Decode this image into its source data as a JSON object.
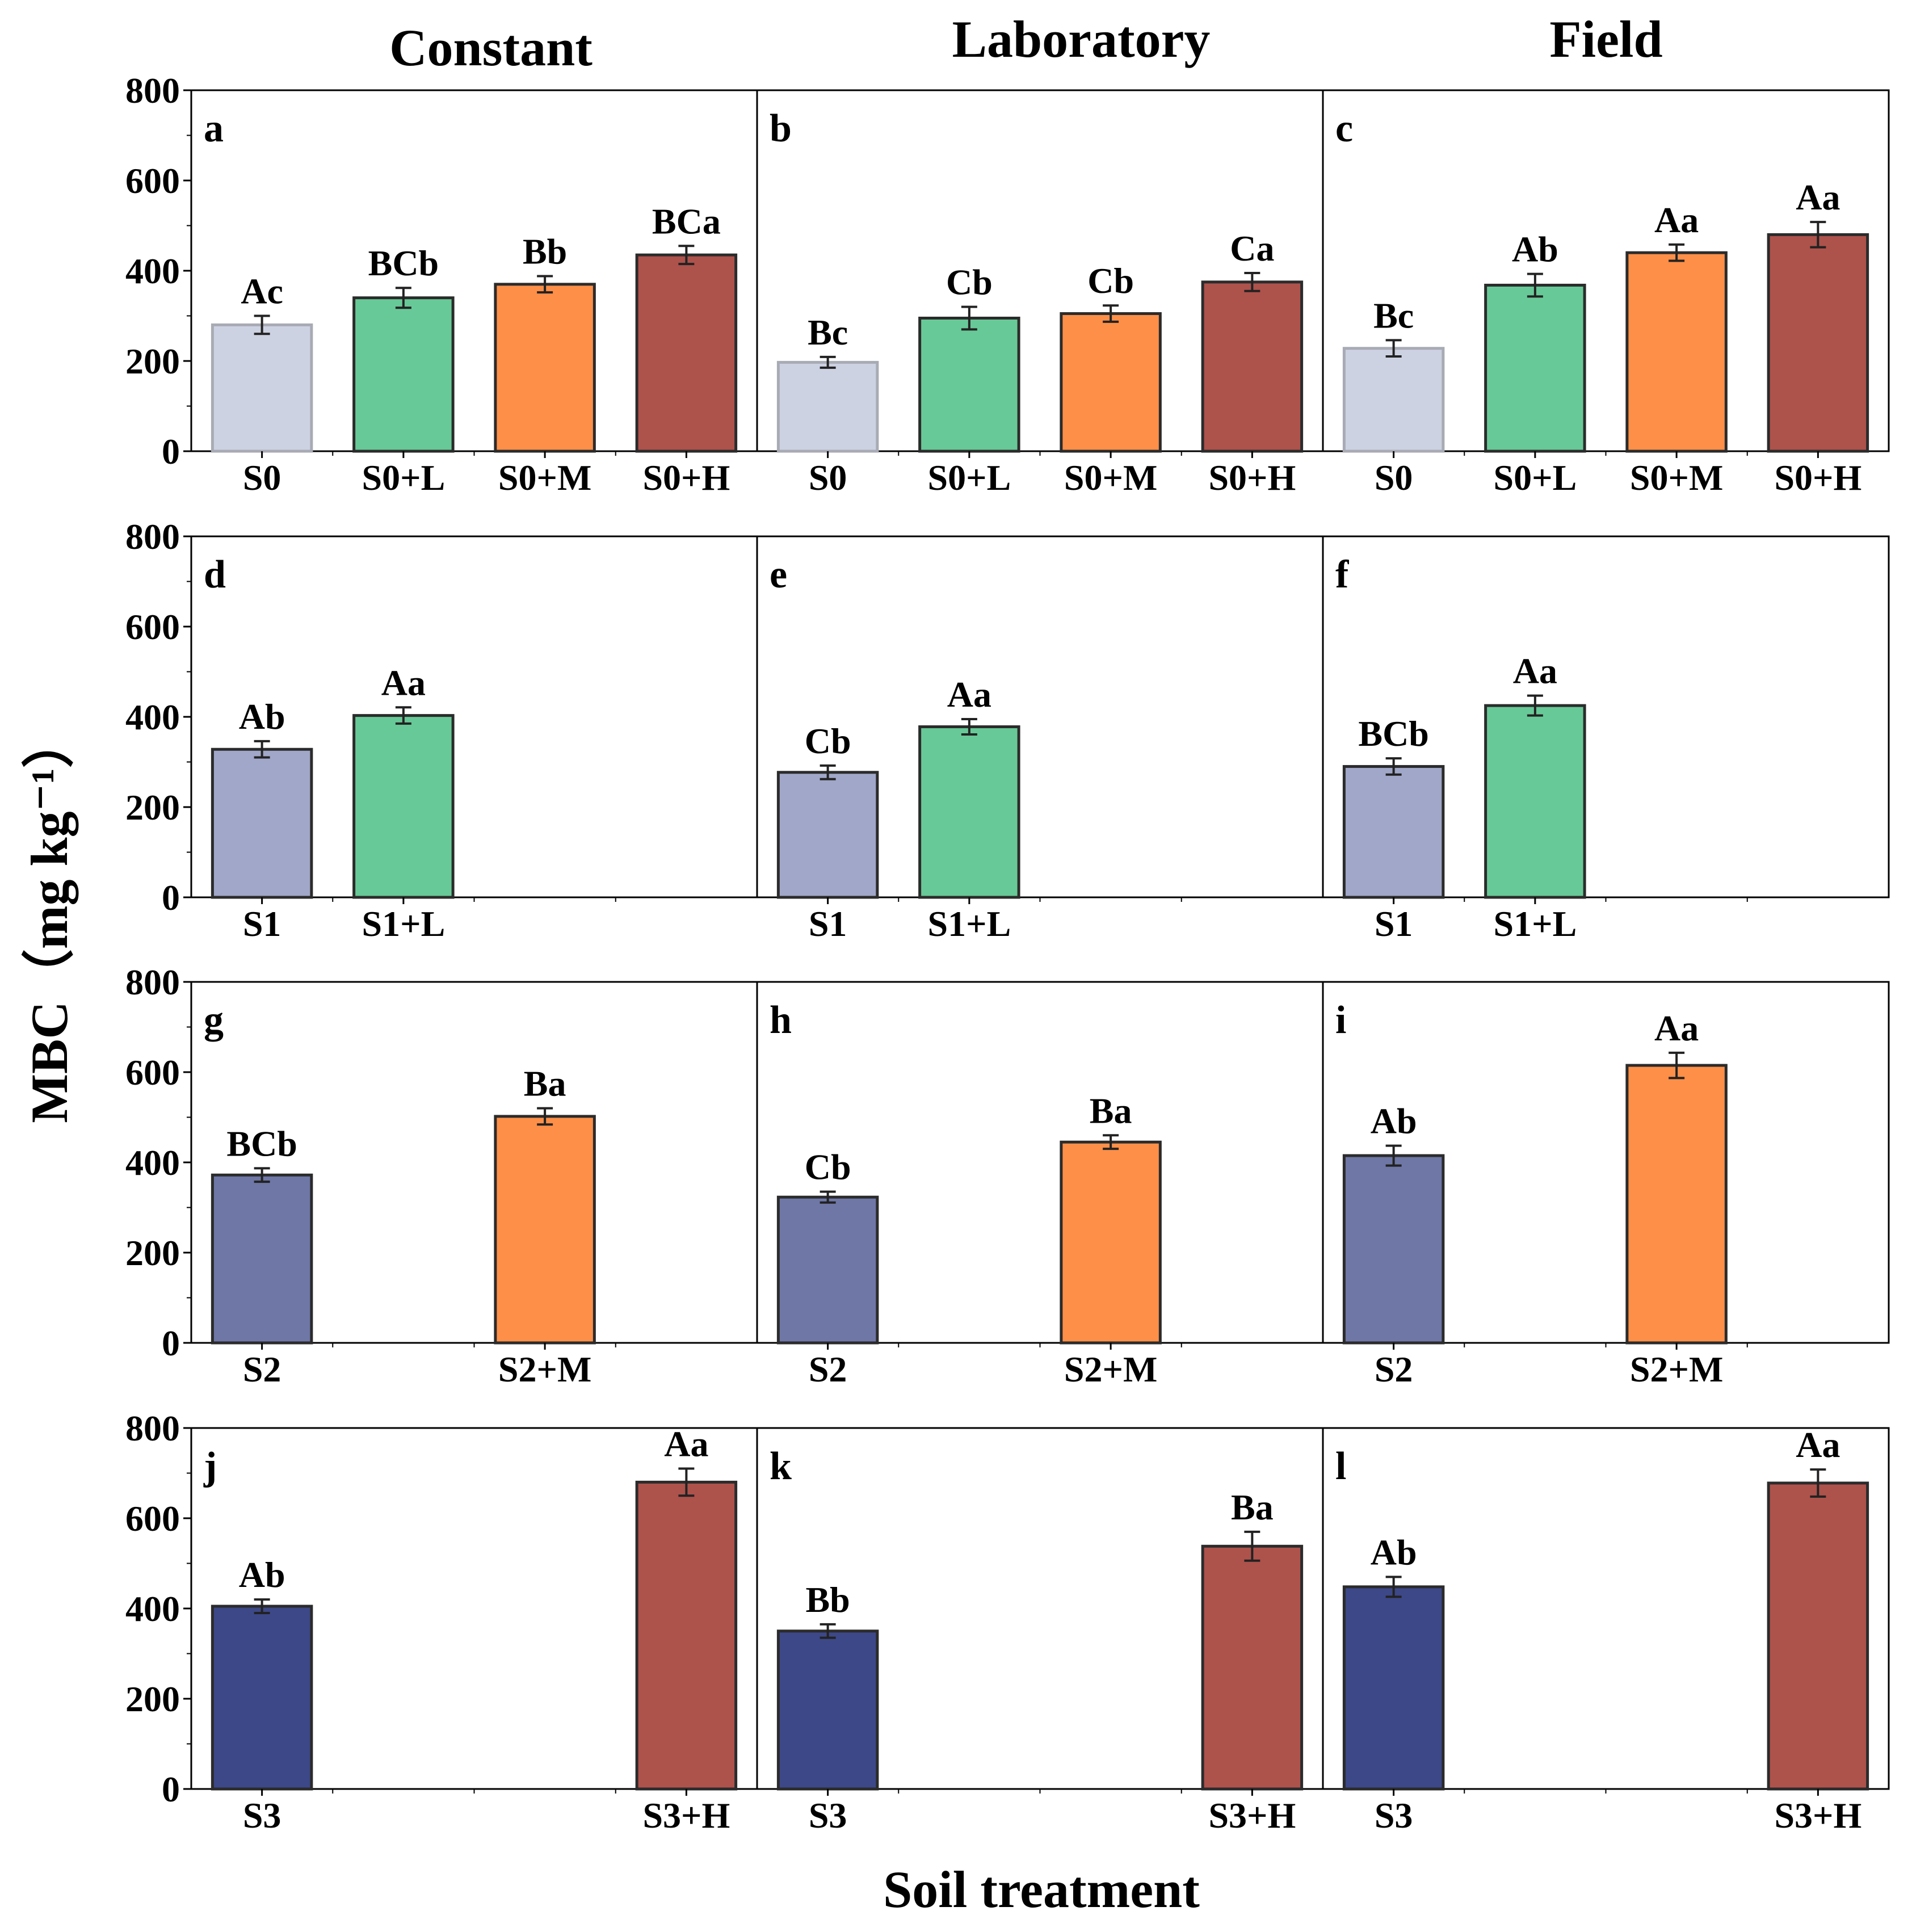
{
  "chart_data": {
    "type": "bar",
    "xlabel": "Soil treatment",
    "ylabel": "MBC（mg kg⁻¹）",
    "ylim": [
      0,
      800
    ],
    "yticks": [
      "0",
      "200",
      "400",
      "600",
      "800"
    ],
    "column_titles": [
      "Constant",
      "Laboratory",
      "Field"
    ],
    "colors": {
      "S0": "#cdd2e3",
      "S1": "#a0a7c8",
      "S2": "#6e77a6",
      "S3": "#3d4888",
      "L": "#67c997",
      "M": "#fd8f48",
      "H": "#ae524c"
    },
    "panels": [
      {
        "letter": "a",
        "row": 0,
        "col": 0,
        "slots": 4,
        "bars": [
          {
            "label": "S0",
            "slot": 0,
            "value": 280,
            "error": 20,
            "sig": "Ac",
            "color": "S0"
          },
          {
            "label": "S0+L",
            "slot": 1,
            "value": 340,
            "error": 22,
            "sig": "BCb",
            "color": "L"
          },
          {
            "label": "S0+M",
            "slot": 2,
            "value": 370,
            "error": 18,
            "sig": "Bb",
            "color": "M"
          },
          {
            "label": "S0+H",
            "slot": 3,
            "value": 435,
            "error": 20,
            "sig": "BCa",
            "color": "H"
          }
        ]
      },
      {
        "letter": "b",
        "row": 0,
        "col": 1,
        "slots": 4,
        "bars": [
          {
            "label": "S0",
            "slot": 0,
            "value": 197,
            "error": 12,
            "sig": "Bc",
            "color": "S0"
          },
          {
            "label": "S0+L",
            "slot": 1,
            "value": 295,
            "error": 25,
            "sig": "Cb",
            "color": "L"
          },
          {
            "label": "S0+M",
            "slot": 2,
            "value": 305,
            "error": 18,
            "sig": "Cb",
            "color": "M"
          },
          {
            "label": "S0+H",
            "slot": 3,
            "value": 375,
            "error": 20,
            "sig": "Ca",
            "color": "H"
          }
        ]
      },
      {
        "letter": "c",
        "row": 0,
        "col": 2,
        "slots": 4,
        "bars": [
          {
            "label": "S0",
            "slot": 0,
            "value": 228,
            "error": 18,
            "sig": "Bc",
            "color": "S0"
          },
          {
            "label": "S0+L",
            "slot": 1,
            "value": 368,
            "error": 25,
            "sig": "Ab",
            "color": "L"
          },
          {
            "label": "S0+M",
            "slot": 2,
            "value": 440,
            "error": 18,
            "sig": "Aa",
            "color": "M"
          },
          {
            "label": "S0+H",
            "slot": 3,
            "value": 480,
            "error": 28,
            "sig": "Aa",
            "color": "H"
          }
        ]
      },
      {
        "letter": "d",
        "row": 1,
        "col": 0,
        "slots": 4,
        "bars": [
          {
            "label": "S1",
            "slot": 0,
            "value": 328,
            "error": 18,
            "sig": "Ab",
            "color": "S1"
          },
          {
            "label": "S1+L",
            "slot": 1,
            "value": 403,
            "error": 18,
            "sig": "Aa",
            "color": "L"
          }
        ]
      },
      {
        "letter": "e",
        "row": 1,
        "col": 1,
        "slots": 4,
        "bars": [
          {
            "label": "S1",
            "slot": 0,
            "value": 277,
            "error": 15,
            "sig": "Cb",
            "color": "S1"
          },
          {
            "label": "S1+L",
            "slot": 1,
            "value": 378,
            "error": 17,
            "sig": "Aa",
            "color": "L"
          }
        ]
      },
      {
        "letter": "f",
        "row": 1,
        "col": 2,
        "slots": 4,
        "bars": [
          {
            "label": "S1",
            "slot": 0,
            "value": 290,
            "error": 18,
            "sig": "BCb",
            "color": "S1"
          },
          {
            "label": "S1+L",
            "slot": 1,
            "value": 425,
            "error": 22,
            "sig": "Aa",
            "color": "L"
          }
        ]
      },
      {
        "letter": "g",
        "row": 2,
        "col": 0,
        "slots": 4,
        "bars": [
          {
            "label": "S2",
            "slot": 0,
            "value": 372,
            "error": 15,
            "sig": "BCb",
            "color": "S2"
          },
          {
            "label": "S2+M",
            "slot": 2,
            "value": 502,
            "error": 18,
            "sig": "Ba",
            "color": "M"
          }
        ]
      },
      {
        "letter": "h",
        "row": 2,
        "col": 1,
        "slots": 4,
        "bars": [
          {
            "label": "S2",
            "slot": 0,
            "value": 323,
            "error": 12,
            "sig": "Cb",
            "color": "S2"
          },
          {
            "label": "S2+M",
            "slot": 2,
            "value": 445,
            "error": 15,
            "sig": "Ba",
            "color": "M"
          }
        ]
      },
      {
        "letter": "i",
        "row": 2,
        "col": 2,
        "slots": 4,
        "bars": [
          {
            "label": "S2",
            "slot": 0,
            "value": 415,
            "error": 22,
            "sig": "Ab",
            "color": "S2"
          },
          {
            "label": "S2+M",
            "slot": 2,
            "value": 615,
            "error": 28,
            "sig": "Aa",
            "color": "M"
          }
        ]
      },
      {
        "letter": "j",
        "row": 3,
        "col": 0,
        "slots": 4,
        "bars": [
          {
            "label": "S3",
            "slot": 0,
            "value": 405,
            "error": 15,
            "sig": "Ab",
            "color": "S3"
          },
          {
            "label": "S3+H",
            "slot": 3,
            "value": 680,
            "error": 30,
            "sig": "Aa",
            "color": "H"
          }
        ]
      },
      {
        "letter": "k",
        "row": 3,
        "col": 1,
        "slots": 4,
        "bars": [
          {
            "label": "S3",
            "slot": 0,
            "value": 350,
            "error": 15,
            "sig": "Bb",
            "color": "S3"
          },
          {
            "label": "S3+H",
            "slot": 3,
            "value": 538,
            "error": 32,
            "sig": "Ba",
            "color": "H"
          }
        ]
      },
      {
        "letter": "l",
        "row": 3,
        "col": 2,
        "slots": 4,
        "bars": [
          {
            "label": "S3",
            "slot": 0,
            "value": 448,
            "error": 22,
            "sig": "Ab",
            "color": "S3"
          },
          {
            "label": "S3+H",
            "slot": 3,
            "value": 678,
            "error": 30,
            "sig": "Aa",
            "color": "H"
          }
        ]
      }
    ]
  }
}
